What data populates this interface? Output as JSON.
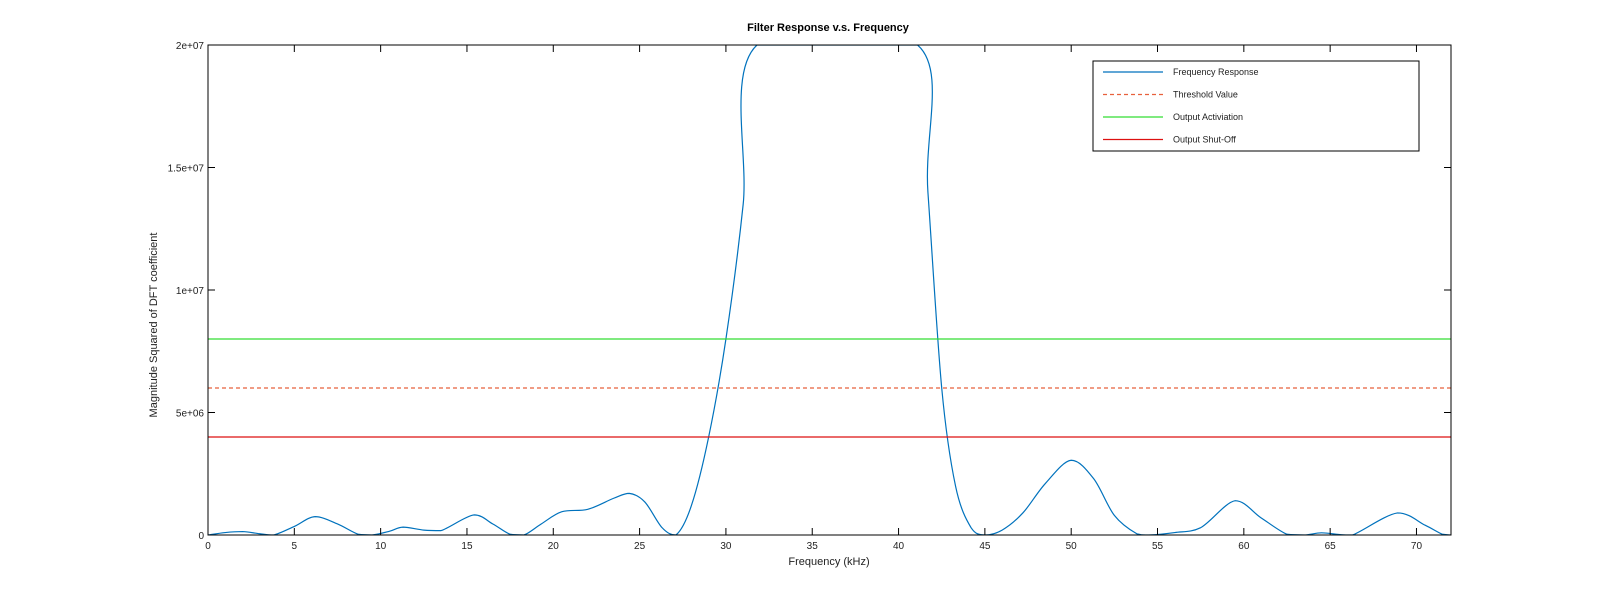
{
  "chart_data": {
    "type": "line",
    "title": "Filter Response v.s. Frequency",
    "xlabel": "Frequency (kHz)",
    "ylabel": "Magnitude Squared of DFT coefficient",
    "xlim": [
      0,
      72
    ],
    "ylim": [
      0,
      20000000
    ],
    "x_ticks": [
      0,
      5,
      10,
      15,
      20,
      25,
      30,
      35,
      40,
      45,
      50,
      55,
      60,
      65,
      70
    ],
    "y_ticks": [
      {
        "value": 0,
        "label": "0"
      },
      {
        "value": 5000000,
        "label": "5e+06"
      },
      {
        "value": 10000000,
        "label": "1e+07"
      },
      {
        "value": 15000000,
        "label": "1.5e+07"
      },
      {
        "value": 20000000,
        "label": "2e+07"
      }
    ],
    "grid": false,
    "legend_position": "top-right",
    "series": [
      {
        "name": "Frequency Response",
        "color": "#0072bd",
        "style": "solid",
        "points": [
          [
            0,
            0
          ],
          [
            1,
            100000
          ],
          [
            2,
            140000
          ],
          [
            3,
            50000
          ],
          [
            3.8,
            0
          ],
          [
            5,
            350000
          ],
          [
            6.2,
            750000
          ],
          [
            7.5,
            450000
          ],
          [
            8.7,
            30000
          ],
          [
            9.5,
            0
          ],
          [
            10.5,
            150000
          ],
          [
            11.3,
            320000
          ],
          [
            12.5,
            200000
          ],
          [
            13.5,
            180000
          ],
          [
            15.4,
            820000
          ],
          [
            16.5,
            450000
          ],
          [
            17.5,
            30000
          ],
          [
            18.3,
            0
          ],
          [
            19.3,
            450000
          ],
          [
            20.5,
            950000
          ],
          [
            22,
            1050000
          ],
          [
            23.5,
            1500000
          ],
          [
            24.4,
            1700000
          ],
          [
            25.3,
            1350000
          ],
          [
            26.3,
            300000
          ],
          [
            27.1,
            0
          ],
          [
            28,
            1200000
          ],
          [
            29,
            4000000
          ],
          [
            30,
            8000000
          ],
          [
            31,
            13500000
          ],
          [
            31.8,
            20000000
          ],
          [
            41.1,
            20000000
          ],
          [
            41.7,
            14000000
          ],
          [
            42.5,
            6000000
          ],
          [
            43.3,
            2000000
          ],
          [
            44.2,
            300000
          ],
          [
            45,
            0
          ],
          [
            46,
            200000
          ],
          [
            47.2,
            900000
          ],
          [
            48.5,
            2100000
          ],
          [
            50,
            3050000
          ],
          [
            51.3,
            2300000
          ],
          [
            52.5,
            800000
          ],
          [
            53.8,
            50000
          ],
          [
            54.5,
            0
          ],
          [
            56,
            100000
          ],
          [
            57.5,
            300000
          ],
          [
            59.5,
            1400000
          ],
          [
            61,
            700000
          ],
          [
            62.5,
            30000
          ],
          [
            63.5,
            0
          ],
          [
            64.5,
            90000
          ],
          [
            65.5,
            20000
          ],
          [
            66.3,
            0
          ],
          [
            68.9,
            900000
          ],
          [
            70.5,
            400000
          ],
          [
            71.5,
            30000
          ],
          [
            72,
            0
          ]
        ]
      },
      {
        "name": "Threshold Value",
        "color": "#e8603c",
        "style": "dashed",
        "points": [
          [
            0,
            6000000
          ],
          [
            72,
            6000000
          ]
        ]
      },
      {
        "name": "Output Activiation",
        "color": "#33dd33",
        "style": "solid",
        "points": [
          [
            0,
            8000000
          ],
          [
            72,
            8000000
          ]
        ]
      },
      {
        "name": "Output Shut-Off",
        "color": "#dd1111",
        "style": "solid",
        "points": [
          [
            0,
            4000000
          ],
          [
            72,
            4000000
          ]
        ]
      }
    ]
  }
}
